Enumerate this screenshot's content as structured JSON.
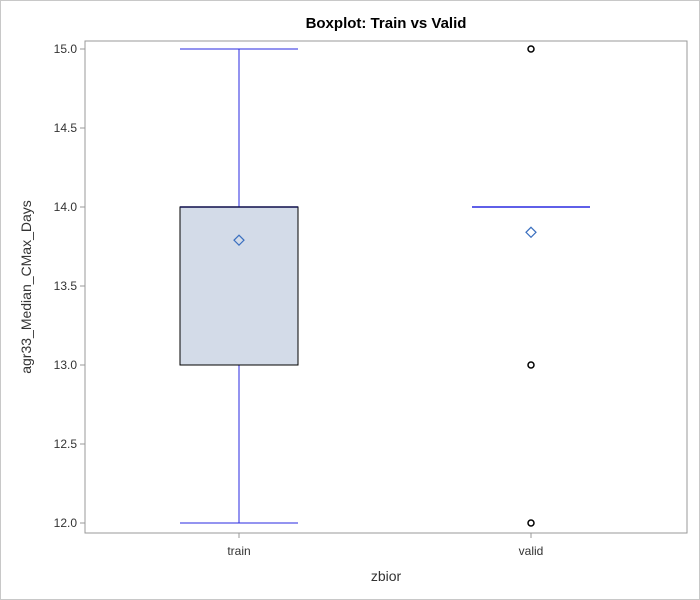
{
  "chart_data": {
    "type": "boxplot",
    "title": "Boxplot: Train vs Valid",
    "xlabel": "zbior",
    "ylabel": "agr33_Median_CMax_Days",
    "categories": [
      "train",
      "valid"
    ],
    "ylim": [
      11.95,
      15.05
    ],
    "yticks": [
      "12.0",
      "12.5",
      "13.0",
      "13.5",
      "14.0",
      "14.5",
      "15.0"
    ],
    "boxes": [
      {
        "category": "train",
        "min": 12.0,
        "q1": 13.0,
        "median": 14.0,
        "q3": 14.0,
        "max": 15.0,
        "mean": 13.79,
        "outliers": []
      },
      {
        "category": "valid",
        "min": 14.0,
        "q1": 14.0,
        "median": 14.0,
        "q3": 14.0,
        "max": 14.0,
        "mean": 13.84,
        "outliers": [
          15.0,
          13.0,
          12.0
        ]
      }
    ],
    "grid": false,
    "colors": {
      "box_fill": "#d3dbe8",
      "box_border": "#000000",
      "whisker": "#2a2ae0",
      "mean_marker": "#3a6fbf",
      "outlier": "#000000",
      "axis": "#999999"
    }
  }
}
